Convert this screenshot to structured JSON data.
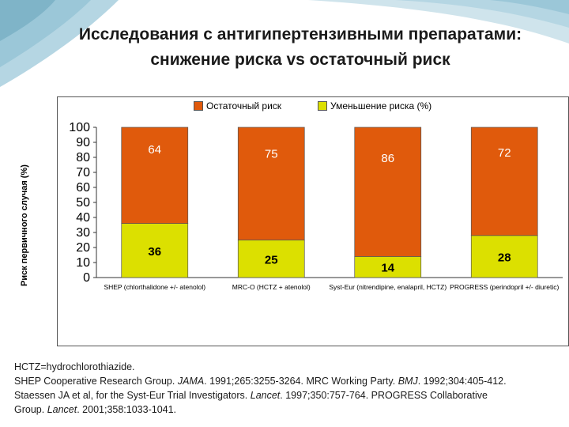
{
  "title": {
    "line1": "Исследования с антигипертензивными препаратами:",
    "line2": "снижение риска vs остаточный риск"
  },
  "colors": {
    "residual": "#E05A0C",
    "reduction": "#DCE000",
    "accent_frame": "#8FB9C9"
  },
  "chart_data": {
    "type": "bar",
    "stacked": true,
    "ylabel": "Риск первичного случая (%)",
    "ylim": [
      0,
      100
    ],
    "yticks": [
      0,
      10,
      20,
      30,
      40,
      50,
      60,
      70,
      80,
      90,
      100
    ],
    "categories": [
      "SHEP (chlorthalidone +/- atenolol)",
      "MRC-O (HCTZ + atenolol)",
      "Syst-Eur (nitrendipine, enalapril, HCTZ)",
      "PROGRESS (perindopril +/- diuretic)"
    ],
    "series": [
      {
        "name": "Уменьшение риска (%)",
        "values": [
          36,
          25,
          14,
          28
        ]
      },
      {
        "name": "Остаточный риск",
        "values": [
          64,
          75,
          86,
          72
        ]
      }
    ],
    "legend_position": "top",
    "grid": false
  },
  "legend": {
    "residual_label": "Остаточный риск",
    "reduction_label": "Уменьшение риска (%)"
  },
  "footnote": {
    "line1": "HCTZ=hydrochlorothiazide.",
    "line2_pre": "SHEP Cooperative Research Group. ",
    "line2_j1": "JAMA",
    "line2_mid": ". 1991;265:3255-3264. MRC Working Party. ",
    "line2_j2": "BMJ",
    "line2_post": ". 1992;304:405-412.",
    "line3_pre": "Staessen JA et al, for the Syst-Eur Trial Investigators. ",
    "line3_j": "Lancet",
    "line3_post": ". 1997;350:757-764. PROGRESS Collaborative",
    "line4_pre": "Group. ",
    "line4_j": "Lancet",
    "line4_post": ". 2001;358:1033-1041."
  }
}
